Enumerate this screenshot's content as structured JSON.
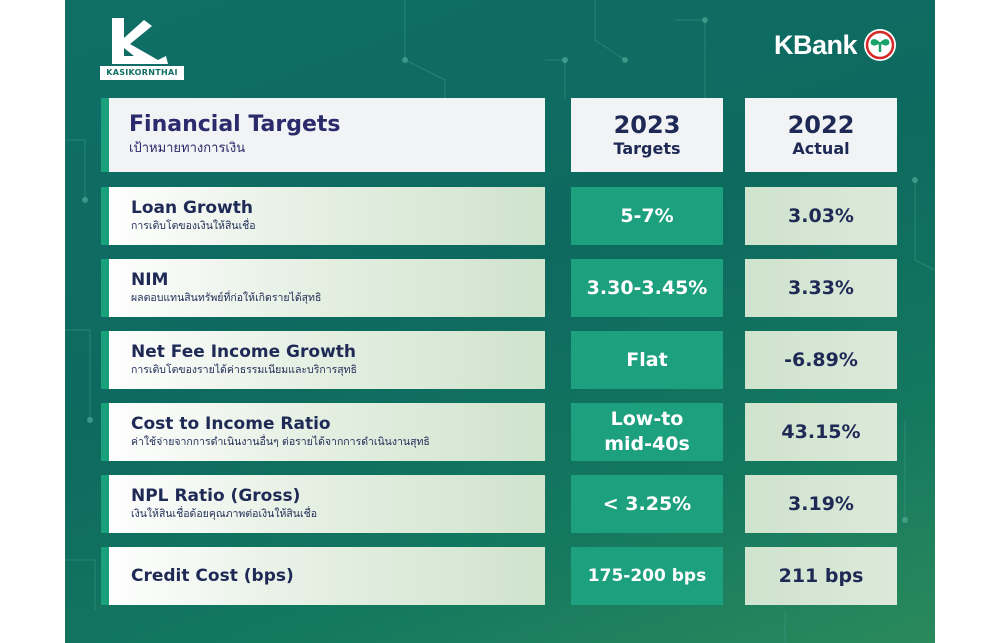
{
  "brand": {
    "kasikorn_wordmark": "KASIKORNTHAI",
    "kbank_label": "KBank"
  },
  "header": {
    "title_en": "Financial Targets",
    "title_th": "เป้าหมายทางการเงิน",
    "col_targets_year": "2023",
    "col_targets_label": "Targets",
    "col_actual_year": "2022",
    "col_actual_label": "Actual"
  },
  "rows": [
    {
      "name_en": "Loan Growth",
      "name_th": "การเติบโตของเงินให้สินเชื่อ",
      "target": "5-7%",
      "actual": "3.03%"
    },
    {
      "name_en": "NIM",
      "name_th": "ผลตอบแทนสินทรัพย์ที่ก่อให้เกิดรายได้สุทธิ",
      "target": "3.30-3.45%",
      "actual": "3.33%"
    },
    {
      "name_en": "Net Fee Income Growth",
      "name_th": "การเติบโตของรายได้ค่าธรรมเนียมและบริการสุทธิ",
      "target": "Flat",
      "actual": "-6.89%"
    },
    {
      "name_en": "Cost to Income Ratio",
      "name_th": "ค่าใช้จ่ายจากการดำเนินงานอื่นๆ ต่อรายได้จากการดำเนินงานสุทธิ",
      "target_line1": "Low-to",
      "target_line2": "mid-40s",
      "actual": "43.15%"
    },
    {
      "name_en": "NPL Ratio (Gross)",
      "name_th": "เงินให้สินเชื่อด้อยคุณภาพต่อเงินให้สินเชื่อ",
      "target": "< 3.25%",
      "actual": "3.19%"
    },
    {
      "name_en": "Credit Cost (bps)",
      "name_th": "",
      "target": "175-200 bps",
      "actual": "211 bps"
    }
  ],
  "colors": {
    "background": "#0f6e66",
    "accent": "#1ca07e",
    "text_dark": "#1e2a55"
  }
}
